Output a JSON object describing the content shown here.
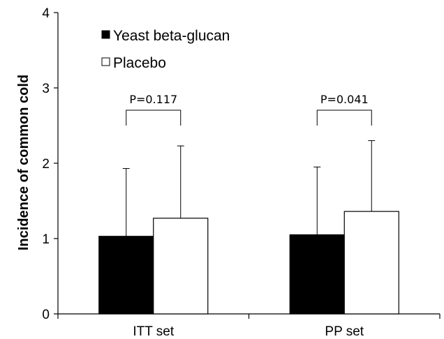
{
  "chart_data": {
    "type": "bar",
    "title": "",
    "xlabel": "",
    "ylabel": "Incidence of common cold",
    "ylim": [
      0,
      4
    ],
    "yticks": [
      0,
      1,
      2,
      3,
      4
    ],
    "categories": [
      "ITT set",
      "PP set"
    ],
    "series": [
      {
        "name": "Yeast beta-glucan",
        "color": "#000000",
        "values": [
          1.03,
          1.05
        ],
        "error_upper": [
          0.9,
          0.9
        ]
      },
      {
        "name": "Placebo",
        "color": "#ffffff",
        "values": [
          1.27,
          1.36
        ],
        "error_upper": [
          0.96,
          0.94
        ]
      }
    ],
    "annotations": [
      {
        "category": "ITT set",
        "text": "P=0.117"
      },
      {
        "category": "PP set",
        "text": "P=0.041"
      }
    ],
    "legend_position": "top-left",
    "grid": false
  }
}
